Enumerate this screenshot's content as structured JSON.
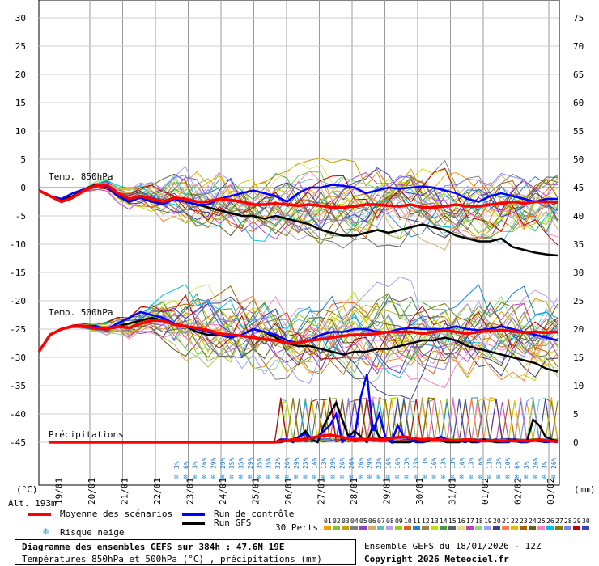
{
  "chart_data": {
    "type": "line",
    "x_dates": [
      "19/01",
      "20/01",
      "21/01",
      "22/01",
      "23/01",
      "24/01",
      "25/01",
      "26/01",
      "27/01",
      "28/01",
      "29/01",
      "30/01",
      "31/01",
      "01/02",
      "02/02",
      "03/02"
    ],
    "left_axis": {
      "unit_label": "(°C)",
      "ticks": [
        30,
        25,
        20,
        15,
        10,
        5,
        0,
        -5,
        -10,
        -15,
        -20,
        -25,
        -30,
        -35,
        -40,
        -45
      ]
    },
    "right_axis": {
      "unit_label": "(mm)",
      "ticks": [
        75,
        70,
        65,
        60,
        55,
        50,
        45,
        40,
        35,
        30,
        25,
        20,
        15,
        10,
        5,
        0
      ]
    },
    "panel_labels": {
      "t850": "Temp. 850hPa",
      "t500": "Temp. 500hPa",
      "precip": "Précipitations"
    },
    "altitude": "Alt. 193m",
    "snow_risk": [
      "3%",
      "6%",
      "3%",
      "26%",
      "29%",
      "29%",
      "35%",
      "35%",
      "29%",
      "35%",
      "35%",
      "32%",
      "26%",
      "29%",
      "23%",
      "16%",
      "13%",
      "29%",
      "26%",
      "26%",
      "26%",
      "29%",
      "23%",
      "16%",
      "16%",
      "13%",
      "23%",
      "13%",
      "16%",
      "13%",
      "13%",
      "16%",
      "13%",
      "16%",
      "13%",
      "13%",
      "10%",
      "6%",
      "3%",
      "26%",
      "3%",
      "26%"
    ],
    "series": [
      {
        "name": "Moyenne des scénarios",
        "color": "#ff0000",
        "t850": [
          -0.5,
          -1.5,
          -2.5,
          -1.8,
          -0.5,
          0.3,
          0.5,
          -1,
          -2,
          -1.5,
          -2,
          -2.5,
          -1.8,
          -2,
          -2.5,
          -2.5,
          -2,
          -2.2,
          -2.5,
          -3,
          -3,
          -2.8,
          -3,
          -3.2,
          -3,
          -3.2,
          -3.5,
          -3.5,
          -3.3,
          -3,
          -3,
          -3.2,
          -3.3,
          -3,
          -3.5,
          -3.5,
          -3.3,
          -3,
          -3.3,
          -3.3,
          -3,
          -2.8,
          -2.5,
          -2.8,
          -2.5,
          -2.5,
          -2.6
        ],
        "t500": [
          -29,
          -26,
          -25,
          -24.5,
          -24.5,
          -24.8,
          -25,
          -24.5,
          -24.8,
          -24,
          -23.5,
          -23.5,
          -24.2,
          -24.5,
          -24.8,
          -25.2,
          -25.8,
          -26,
          -26.2,
          -26.5,
          -26.8,
          -27,
          -27.5,
          -27.5,
          -27,
          -26.8,
          -26.5,
          -26.2,
          -26,
          -26,
          -25.8,
          -25.5,
          -25.5,
          -25.5,
          -25.8,
          -25.5,
          -25.2,
          -25.5,
          -25.8,
          -25.5,
          -25.3,
          -25.2,
          -25.4,
          -25.6,
          -25.5,
          -25.6,
          -25.5
        ],
        "precip": [
          0,
          0,
          0,
          0,
          0,
          0,
          0,
          0,
          0,
          0,
          0,
          0,
          0,
          0,
          0,
          0,
          0,
          0,
          0.2,
          0.3,
          0.5,
          0.5,
          0.6,
          0.8,
          1,
          1.2,
          1.3,
          1.1,
          0.9,
          0.6,
          0.5,
          0.6,
          0.5,
          0.6,
          0.5,
          0.5,
          0.7,
          0.9,
          1,
          0.8,
          0.6,
          0.5,
          0.6,
          0.5,
          0.4,
          0.4,
          0.3,
          0.3,
          0.5,
          0.4,
          0.3,
          0.2,
          0.3,
          0.3,
          0.2,
          0.3,
          0.2,
          0.3,
          0.2,
          0.3,
          0.4,
          0.3,
          0.2,
          0.1
        ]
      },
      {
        "name": "Run de contrôle",
        "color": "#0000ff",
        "t850": [
          -0.5,
          -1.5,
          -2,
          -1,
          -0.3,
          0.3,
          0.2,
          -1.5,
          -2.5,
          -1.8,
          -2.5,
          -3,
          -2,
          -2.5,
          -3,
          -3,
          -2,
          -1.5,
          -1,
          -0.5,
          -1,
          -1.5,
          -2.5,
          -1,
          0,
          0,
          0.5,
          0.3,
          0,
          -1,
          -0.5,
          0,
          -0.2,
          0,
          0.2,
          0,
          -0.5,
          -1,
          -2,
          -2.5,
          -1.5,
          -1,
          -1.5,
          -2,
          -2.5,
          -2,
          -2
        ],
        "t500": [
          -29,
          -26,
          -25,
          -24.5,
          -24.5,
          -24.5,
          -25,
          -24,
          -23,
          -22,
          -22.5,
          -23,
          -24,
          -24.5,
          -25,
          -25.5,
          -26,
          -26.5,
          -26,
          -25,
          -25.5,
          -26,
          -27,
          -27.5,
          -27,
          -26,
          -25.5,
          -25.5,
          -25,
          -25,
          -25.5,
          -25.5,
          -25,
          -24.8,
          -25,
          -25,
          -25,
          -24.5,
          -25,
          -25.2,
          -25,
          -24.5,
          -25,
          -25.5,
          -26,
          -26.5,
          -27
        ],
        "precip": [
          0,
          0,
          0,
          0,
          0,
          0,
          0,
          0,
          0,
          0,
          0,
          0,
          0,
          0,
          0,
          0,
          0,
          0,
          0.5,
          0.5,
          0,
          1,
          1.5,
          0.5,
          1,
          2,
          3,
          5,
          0,
          1,
          1,
          8,
          12,
          2,
          5,
          1,
          0,
          3,
          1,
          0.5,
          0,
          0,
          0.5,
          0.5,
          1,
          0.5,
          0.2,
          0.3,
          0,
          0.5,
          0,
          0.3,
          0.2,
          0.5,
          0,
          0,
          0.5,
          0,
          0,
          0.3,
          0.2,
          0,
          0.1,
          0
        ]
      },
      {
        "name": "Run GFS",
        "color": "#000000",
        "t850": [
          -0.5,
          -1.5,
          -2.2,
          -1.5,
          -0.3,
          0.5,
          0.2,
          -1.2,
          -2.2,
          -1.5,
          -2.3,
          -2.8,
          -2,
          -2.5,
          -3,
          -3.5,
          -4,
          -4.5,
          -5,
          -5,
          -5.5,
          -5,
          -5.5,
          -6,
          -6.5,
          -7.5,
          -8,
          -8.5,
          -8.5,
          -8,
          -7.5,
          -8,
          -7.5,
          -7,
          -6.5,
          -7,
          -7.5,
          -8.5,
          -9,
          -9.5,
          -9.5,
          -9,
          -10.5,
          -11,
          -11.5,
          -11.8,
          -12
        ],
        "t500": [
          -29,
          -26,
          -25,
          -24.5,
          -24.5,
          -24.5,
          -25,
          -24.5,
          -24,
          -23.5,
          -23,
          -23.5,
          -24,
          -24.5,
          -25.5,
          -26,
          -26,
          -26.5,
          -26,
          -25,
          -25.5,
          -26.5,
          -27.5,
          -28,
          -28,
          -28.5,
          -29,
          -29.5,
          -29,
          -29,
          -28.5,
          -28.5,
          -28,
          -27.5,
          -27,
          -27,
          -26.5,
          -27,
          -28,
          -28.5,
          -29,
          -29.5,
          -30,
          -30.5,
          -31,
          -32,
          -32.5
        ],
        "precip": [
          0,
          0,
          0,
          0,
          0,
          0,
          0,
          0,
          0,
          0,
          0,
          0,
          0,
          0,
          0,
          0,
          0,
          0,
          0,
          0.3,
          0.5,
          1,
          2,
          0.5,
          0,
          3,
          5,
          7,
          4,
          1,
          2,
          1,
          0,
          3,
          1,
          0.5,
          0,
          0,
          0,
          0,
          0.5,
          0,
          0.2,
          0.5,
          0.3,
          0,
          0,
          0,
          0.5,
          0,
          0,
          0.5,
          0.2,
          0,
          0,
          0.5,
          0.2,
          0,
          0.2,
          4,
          3,
          1,
          0.5,
          0.2
        ]
      }
    ],
    "perturbations_label": "30 Perts.",
    "perturbation_ids": [
      "01",
      "02",
      "03",
      "04",
      "05",
      "06",
      "07",
      "08",
      "09",
      "10",
      "11",
      "12",
      "13",
      "14",
      "15",
      "16",
      "17",
      "18",
      "19",
      "20",
      "21",
      "22",
      "23",
      "24",
      "25",
      "26",
      "27",
      "28",
      "29",
      "30"
    ],
    "perturbation_colors": [
      "#f4a000",
      "#80c040",
      "#c8a000",
      "#808080",
      "#9040c0",
      "#d0b060",
      "#60c0c0",
      "#c0a0e0",
      "#a0d000",
      "#e06020",
      "#2080d0",
      "#a08040",
      "#c0e000",
      "#40a040",
      "#606060",
      "#e0e080",
      "#c040c0",
      "#80e080",
      "#a0a0ff",
      "#404080",
      "#ff8040",
      "#e0c000",
      "#b06000",
      "#606020",
      "#ff80c0",
      "#00c0e0",
      "#808000",
      "#8080ff",
      "#c00000",
      "#4040c0"
    ],
    "legend": {
      "mean": "Moyenne des scénarios",
      "control": "Run de contrôle",
      "gfs": "Run GFS",
      "snow": "Risque neige"
    },
    "info": {
      "title": "Diagramme des ensembles GEFS sur 384h : 47.6N 19E",
      "subtitle": "Températures 850hPa et 500hPa (°C) , précipitations (mm)",
      "ensemble": "Ensemble GEFS du 18/01/2026 - 12Z",
      "copyright": "Copyright 2026 Meteociel.fr"
    }
  }
}
